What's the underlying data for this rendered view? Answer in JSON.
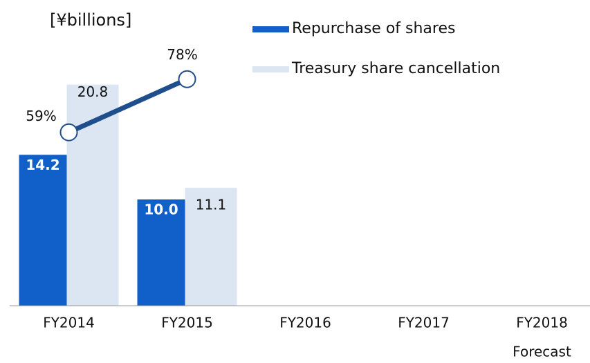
{
  "chart_data": {
    "type": "bar",
    "title": "[¥billions]",
    "categories": [
      "FY2014",
      "FY2015",
      "FY2016",
      "FY2017",
      "FY2018"
    ],
    "category_note": "Forecast",
    "ylim": [
      0,
      25
    ],
    "y2lim": [
      -3,
      92
    ],
    "series": [
      {
        "name": "Repurchase of shares",
        "color": "#1160c9",
        "values": [
          14.2,
          10.0,
          null,
          null,
          null
        ],
        "value_labels": [
          "14.2",
          "10.0",
          null,
          null,
          null
        ]
      },
      {
        "name": "Treasury share cancellation",
        "color": "#dce6f2",
        "values": [
          20.8,
          11.1,
          null,
          null,
          null
        ]
      },
      {
        "type": "line",
        "axis": "y2",
        "color": "#1f4e8c",
        "values": [
          59,
          78,
          null,
          null,
          null
        ],
        "value_labels": [
          "59%",
          "78%",
          null,
          null,
          null
        ]
      }
    ]
  }
}
